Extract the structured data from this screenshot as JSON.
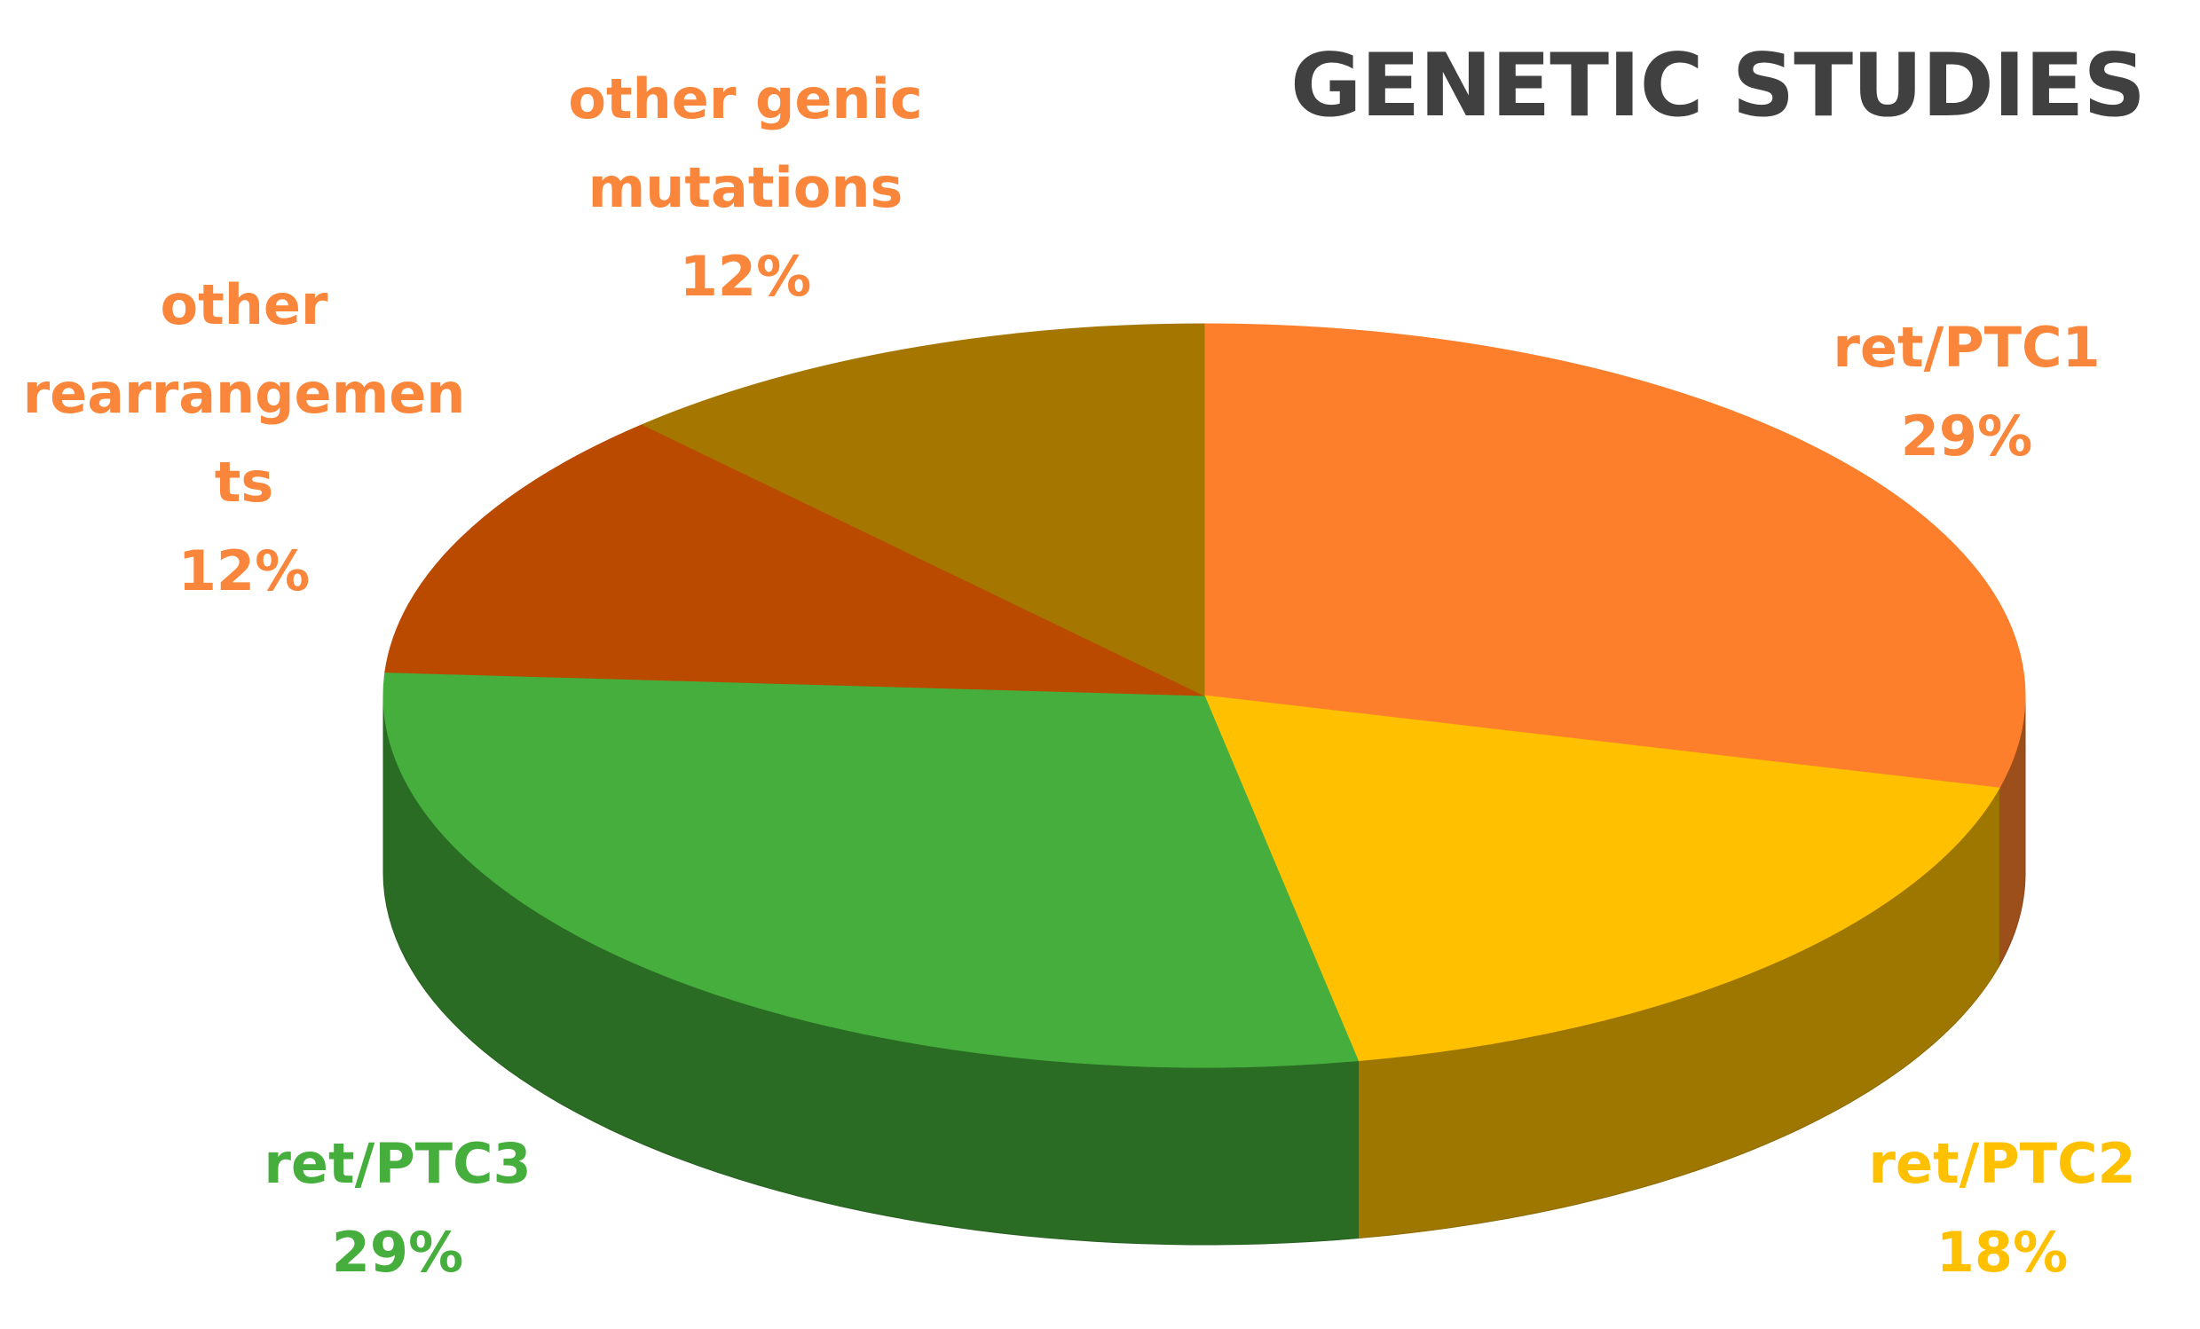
{
  "chart_data": {
    "type": "pie",
    "title": "GENETIC STUDIES",
    "categories": [
      "ret/PTC1",
      "ret/PTC2",
      "ret/PTC3",
      "other rearrangements",
      "other genic mutations"
    ],
    "values": [
      29,
      18,
      29,
      12,
      12
    ],
    "value_labels": [
      "29%",
      "18%",
      "29%",
      "12%",
      "12%"
    ],
    "colors": [
      "#fd7f2c",
      "#ffc000",
      "#46ae3c",
      "#b94a00",
      "#a57600"
    ],
    "label_colors": [
      "#f9863a",
      "#ffc000",
      "#46ae3c",
      "#f9863a",
      "#f9863a"
    ]
  }
}
